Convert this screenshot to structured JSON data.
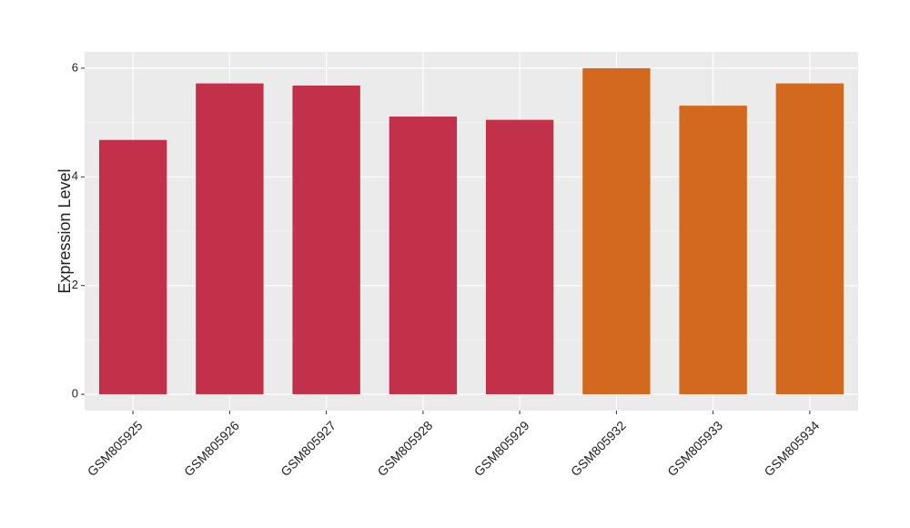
{
  "chart_data": {
    "type": "bar",
    "y_label": "Expression Level",
    "categories": [
      "GSM805925",
      "GSM805926",
      "GSM805927",
      "GSM805928",
      "GSM805929",
      "GSM805932",
      "GSM805933",
      "GSM805934"
    ],
    "values": [
      4.68,
      5.72,
      5.68,
      5.11,
      5.05,
      6.0,
      5.31,
      5.72
    ],
    "colors": [
      "#c3304a",
      "#c3304a",
      "#c3304a",
      "#c3304a",
      "#c3304a",
      "#d2691e",
      "#d2691e",
      "#d2691e"
    ],
    "ylim": [
      -0.3,
      6.3
    ],
    "yticks": [
      0,
      2,
      4,
      6
    ],
    "grid": true
  }
}
